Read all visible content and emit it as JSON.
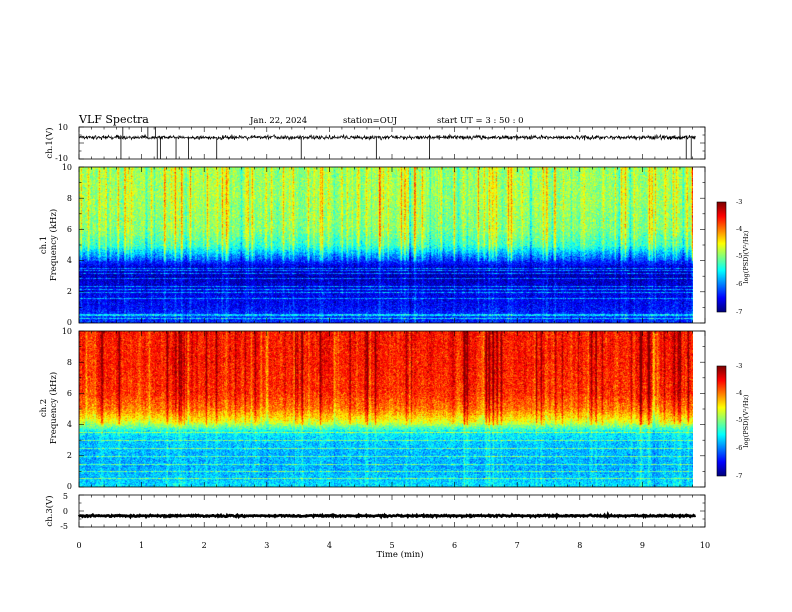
{
  "header": {
    "title": "VLF Spectra",
    "date": "Jan. 22, 2024",
    "station": "station=OUJ",
    "start_time": "start  UT =  3 : 50 : 0"
  },
  "chart_data": [
    {
      "type": "line",
      "panel": "ch1-waveform",
      "ylabel": "ch.1(V)",
      "ylim": [
        -10,
        10
      ],
      "yticks": [
        "10",
        "-10"
      ],
      "xlim": [
        0,
        10
      ],
      "baseline": 3.5,
      "noise_amplitude": 1.2,
      "spikes_at_min": [
        0.67,
        0.7,
        1.1,
        1.22,
        1.25,
        1.3,
        1.55,
        1.75,
        2.2,
        3.55,
        4.75,
        5.6,
        9.6,
        9.7,
        9.78
      ],
      "color": "#000000"
    },
    {
      "type": "heatmap",
      "panel": "ch1-spectrogram",
      "ylabel_line1": "ch.1",
      "ylabel_line2": "Frequency (kHz)",
      "ylim": [
        0,
        10
      ],
      "yticks": [
        "0",
        "2",
        "4",
        "6",
        "8",
        "10"
      ],
      "xlim": [
        0,
        9.85
      ],
      "colorbar_label": "log(PSD)(V²/Hz)",
      "colorbar_ticks": [
        "-3",
        "-4",
        "-5",
        "-6",
        "-7"
      ],
      "clim": [
        -7,
        -3
      ],
      "band_profile_khz": [
        [
          0,
          -6.4
        ],
        [
          0.5,
          -6.3
        ],
        [
          1,
          -6.5
        ],
        [
          2,
          -6.6
        ],
        [
          3,
          -6.8
        ],
        [
          3.6,
          -6.7
        ],
        [
          4.2,
          -6.1
        ],
        [
          5,
          -5.3
        ],
        [
          6,
          -5.0
        ],
        [
          8,
          -4.9
        ],
        [
          10,
          -4.9
        ]
      ],
      "line_freqs_khz": [
        0.3,
        0.5,
        0.6,
        1.6,
        2.0,
        2.2,
        2.4,
        2.9,
        3.2,
        3.4,
        3.5
      ]
    },
    {
      "type": "heatmap",
      "panel": "ch2-spectrogram",
      "ylabel_line1": "ch.2",
      "ylabel_line2": "Frequency (kHz)",
      "ylim": [
        0,
        10
      ],
      "yticks": [
        "0",
        "2",
        "4",
        "6",
        "8",
        "10"
      ],
      "xlim": [
        0,
        9.85
      ],
      "colorbar_label": "log(PSD)(V²/Hz)",
      "colorbar_ticks": [
        "-3",
        "-4",
        "-5",
        "-6",
        "-7"
      ],
      "clim": [
        -7,
        -3
      ],
      "band_profile_khz": [
        [
          0,
          -5.6
        ],
        [
          1,
          -5.8
        ],
        [
          2,
          -5.8
        ],
        [
          3,
          -5.7
        ],
        [
          3.6,
          -5.5
        ],
        [
          4.2,
          -4.6
        ],
        [
          5,
          -4.0
        ],
        [
          6,
          -3.7
        ],
        [
          8,
          -3.6
        ],
        [
          10,
          -3.6
        ]
      ],
      "line_freqs_khz": [
        0.6,
        1.0,
        1.5,
        2.0,
        2.5,
        3.0,
        3.5
      ]
    },
    {
      "type": "line",
      "panel": "ch3-waveform",
      "ylabel": "ch.3(V)",
      "ylim": [
        -5,
        5
      ],
      "yticks": [
        "5",
        "0",
        "-5"
      ],
      "xlim": [
        0,
        10
      ],
      "baseline": -1.5,
      "noise_amplitude": 0.25,
      "color": "#000000"
    }
  ],
  "xaxis": {
    "label": "Time (min)",
    "ticks": [
      "0",
      "1",
      "2",
      "3",
      "4",
      "5",
      "6",
      "7",
      "8",
      "9",
      "10"
    ]
  },
  "colors": {
    "jet": [
      "#00007f",
      "#0000ff",
      "#007fff",
      "#00ffff",
      "#7fff7f",
      "#ffff00",
      "#ff7f00",
      "#ff0000",
      "#7f0000"
    ]
  }
}
